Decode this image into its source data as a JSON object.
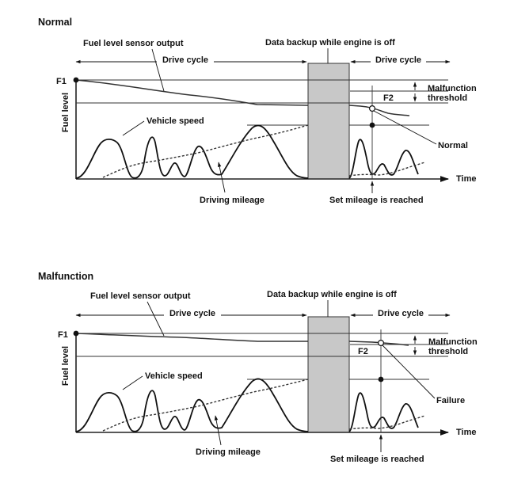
{
  "panels": [
    {
      "title": "Normal",
      "label_sensor_output": "Fuel level sensor output",
      "label_backup": "Data backup while engine is off",
      "label_drive_cycle_1": "Drive cycle",
      "label_drive_cycle_2": "Drive cycle",
      "label_f1": "F1",
      "label_f2": "F2",
      "label_fuel_level": "Fuel level",
      "label_malfunction_threshold_1": "Malfunction",
      "label_malfunction_threshold_2": "threshold",
      "label_vehicle_speed": "Vehicle speed",
      "label_result": "Normal",
      "label_time": "Time",
      "label_driving_mileage": "Driving mileage",
      "label_set_mileage": "Set mileage is reached"
    },
    {
      "title": "Malfunction",
      "label_sensor_output": "Fuel level sensor output",
      "label_backup": "Data backup while engine is off",
      "label_drive_cycle_1": "Drive cycle",
      "label_drive_cycle_2": "Drive cycle",
      "label_f1": "F1",
      "label_f2": "F2",
      "label_fuel_level": "Fuel level",
      "label_malfunction_threshold_1": "Malfunction",
      "label_malfunction_threshold_2": "threshold",
      "label_vehicle_speed": "Vehicle speed",
      "label_result": "Failure",
      "label_time": "Time",
      "label_driving_mileage": "Driving mileage",
      "label_set_mileage": "Set mileage is reached"
    }
  ],
  "colors": {
    "ink": "#111111",
    "line": "#333333",
    "backup_fill": "#c8c8c8",
    "background": "#ffffff"
  }
}
